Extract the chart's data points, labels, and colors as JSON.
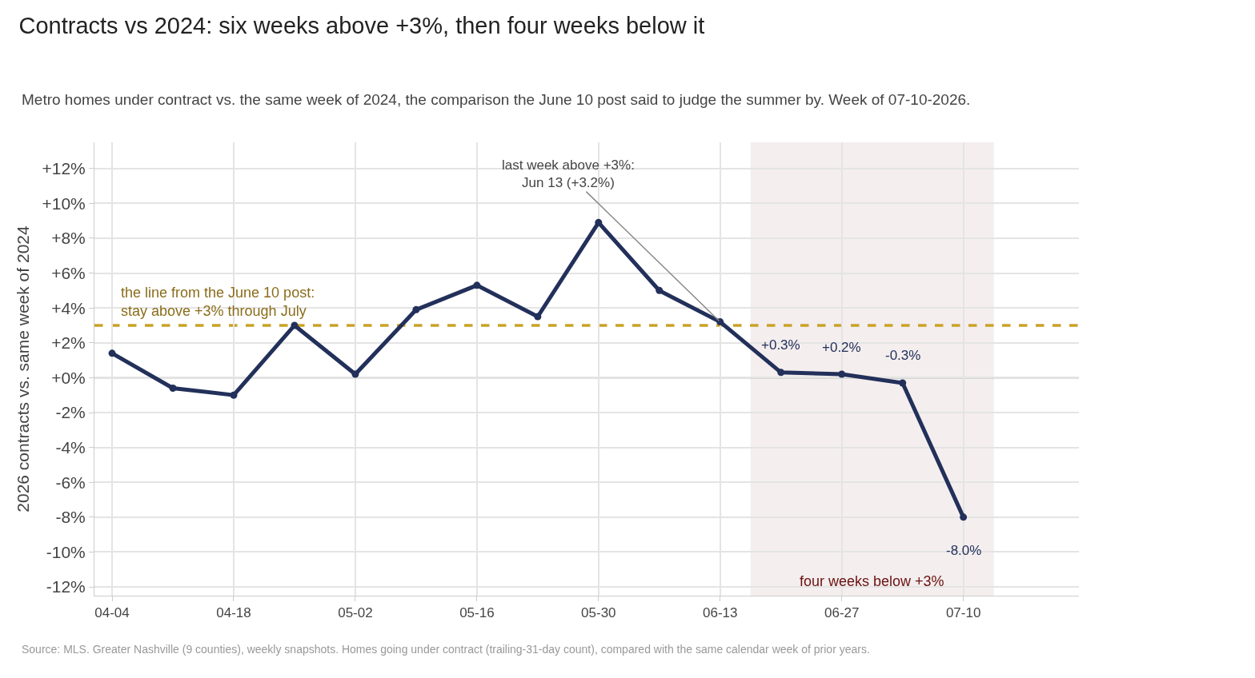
{
  "chart_data": {
    "type": "line",
    "title": "Contracts vs 2024: six weeks above +3%, then four weeks below it",
    "subtitle": "Metro homes under contract vs. the same week of 2024, the comparison the June 10 post said to judge the summer by. Week of 07-10-2026.",
    "ylabel": "2026 contracts vs. same week of 2024",
    "categories": [
      "04-04",
      null,
      "04-18",
      null,
      "05-02",
      null,
      "05-16",
      null,
      "05-30",
      null,
      "06-13",
      null,
      "06-27",
      null,
      "07-10"
    ],
    "series": [
      {
        "color": "#22305a",
        "values": [
          1.4,
          -0.6,
          -1.0,
          3.0,
          0.2,
          3.9,
          5.3,
          3.5,
          8.9,
          5.0,
          3.2,
          0.3,
          0.2,
          -0.3,
          -8.0
        ],
        "value_labels": [
          null,
          null,
          null,
          null,
          null,
          null,
          null,
          null,
          null,
          null,
          null,
          "+0.3%",
          "+0.2%",
          "-0.3%",
          "-8.0%"
        ]
      }
    ],
    "ylim": [
      -12.5,
      13.5
    ],
    "yticks": [
      {
        "value": -12,
        "label": "-12%"
      },
      {
        "value": -10,
        "label": "-10%"
      },
      {
        "value": -8,
        "label": "-8%"
      },
      {
        "value": -6,
        "label": "-6%"
      },
      {
        "value": -4,
        "label": "-4%"
      },
      {
        "value": -2,
        "label": "-2%"
      },
      {
        "value": 0,
        "label": "+0%"
      },
      {
        "value": 2,
        "label": "+2%"
      },
      {
        "value": 4,
        "label": "+4%"
      },
      {
        "value": 6,
        "label": "+6%"
      },
      {
        "value": 8,
        "label": "+8%"
      },
      {
        "value": 10,
        "label": "+10%"
      },
      {
        "value": 12,
        "label": "+12%"
      }
    ],
    "ref_lines": [
      {
        "axis": "y",
        "value": 3,
        "label": "the line from the June 10 post:\nstay above +3% through July",
        "color": "#c9a227",
        "line_style": "dashed"
      },
      {
        "axis": "y",
        "value": 0,
        "color": "#888888",
        "line_style": "solid"
      }
    ],
    "bands": [
      {
        "axis": "x",
        "from": "06-13",
        "to": "07-10",
        "label": "four weeks below +3%",
        "color": "#f4eeee"
      }
    ],
    "annotations": [
      {
        "text": "last week above +3%:\nJun 13 (+3.2%)",
        "x": "06-13",
        "y": 3.2
      },
      "Source: MLS. Greater Nashville (9 counties), weekly snapshots. Homes going under contract (trailing-31-day count), compared with the same calendar week of prior years."
    ],
    "grid": true,
    "marker": "circle",
    "line_style": "solid"
  }
}
